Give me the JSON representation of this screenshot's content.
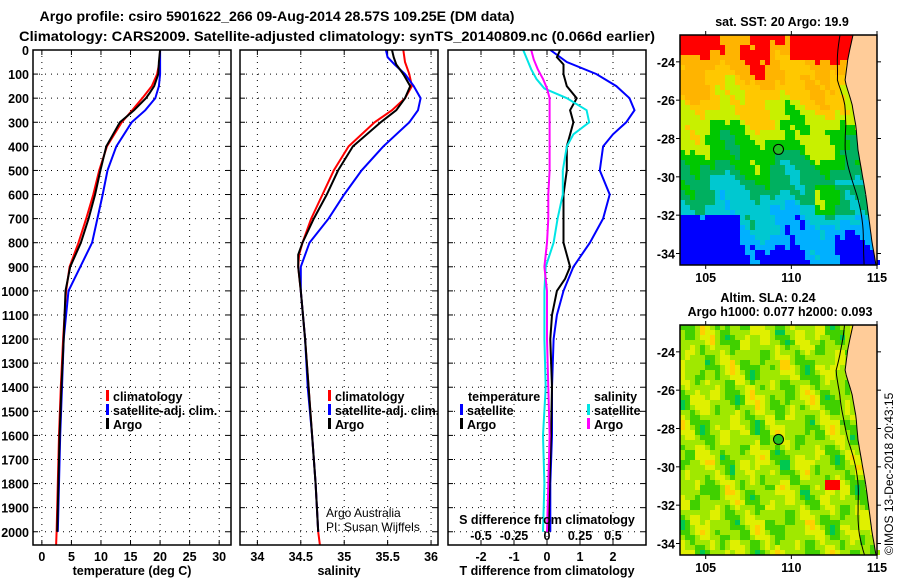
{
  "title": {
    "line1": "Argo profile: csiro 5901622_266 09-Aug-2014 28.57S 109.25E (DM data)",
    "line2": "Climatology: CARS2009. Satellite-adjusted climatology: synTS_20140809.nc (0.066d earlier)"
  },
  "credit": {
    "line1": "Argo Australia",
    "line2": "PI: Susan Wijffels"
  },
  "watermark": "©IMOS 13-Dec-2018 20:43:15",
  "colors": {
    "climatology": "#ff0000",
    "satellite": "#0000ff",
    "argo": "#000000",
    "sal_satellite": "#00e5e5",
    "sal_argo": "#ff00ff",
    "land": "#ffcc99"
  },
  "chart_data": [
    {
      "type": "line",
      "id": "temperature",
      "xlabel": "temperature (deg C)",
      "ylabel": "depth",
      "xlim": [
        -1.5,
        32
      ],
      "ylim": [
        2055,
        0
      ],
      "xticks": [
        "0",
        "5",
        "10",
        "15",
        "20",
        "25",
        "30"
      ],
      "xtick_values": [
        0,
        5,
        10,
        15,
        20,
        25,
        30
      ],
      "yticks": [
        "0",
        "100",
        "200",
        "300",
        "400",
        "500",
        "600",
        "700",
        "800",
        "900",
        "1000",
        "1100",
        "1200",
        "1300",
        "1400",
        "1500",
        "1600",
        "1700",
        "1800",
        "1900",
        "2000"
      ],
      "ytick_values": [
        0,
        100,
        200,
        300,
        400,
        500,
        600,
        700,
        800,
        900,
        1000,
        1100,
        1200,
        1300,
        1400,
        1500,
        1600,
        1700,
        1800,
        1900,
        2000
      ],
      "grid": true,
      "legend": [
        "climatology",
        "satellite-adj. clim.",
        "Argo"
      ],
      "legend_placement": "lower-right",
      "series": [
        {
          "name": "climatology",
          "color": "#ff0000",
          "depth": [
            0,
            50,
            100,
            150,
            200,
            250,
            300,
            400,
            500,
            600,
            700,
            800,
            900,
            1000,
            1200,
            1400,
            1600,
            1800,
            2000,
            2055
          ],
          "values": [
            20,
            19.9,
            19.5,
            18.6,
            17,
            15.3,
            13.5,
            11,
            9.7,
            8.7,
            7.5,
            6.2,
            4.7,
            4.1,
            3.6,
            3.2,
            2.9,
            2.7,
            2.5,
            2.4
          ]
        },
        {
          "name": "satellite-adj. clim.",
          "color": "#0000ff",
          "depth": [
            0,
            50,
            100,
            150,
            200,
            250,
            300,
            400,
            500,
            600,
            700,
            800,
            900,
            1000,
            1200,
            1400,
            1600,
            1800,
            2000
          ],
          "values": [
            20,
            20,
            20,
            19.8,
            19.2,
            17.5,
            15.2,
            12.6,
            11.1,
            10.3,
            9.4,
            8.5,
            6.5,
            4.5,
            3.7,
            3.4,
            3.1,
            2.9,
            2.7
          ]
        },
        {
          "name": "Argo",
          "color": "#000000",
          "depth": [
            0,
            50,
            100,
            150,
            180,
            200,
            250,
            300,
            400,
            500,
            600,
            700,
            800,
            900,
            1000,
            1200,
            1400,
            1600,
            1800,
            2000
          ],
          "values": [
            20,
            19.8,
            19.7,
            19,
            18.2,
            17.6,
            15.6,
            13.2,
            10.9,
            9.9,
            9,
            7.9,
            6.6,
            4.8,
            4,
            3.7,
            3.3,
            3,
            2.8,
            2.6
          ]
        }
      ]
    },
    {
      "type": "line",
      "id": "salinity",
      "xlabel": "salinity",
      "xlim": [
        33.8,
        36.08
      ],
      "ylim": [
        2055,
        0
      ],
      "xticks": [
        "34",
        "34.5",
        "35",
        "35.5",
        "36"
      ],
      "xtick_values": [
        34,
        34.5,
        35,
        35.5,
        36
      ],
      "grid": true,
      "legend": [
        "climatology",
        "satellite-adj. clim.",
        "Argo"
      ],
      "legend_placement": "lower-right",
      "series": [
        {
          "name": "climatology",
          "color": "#ff0000",
          "depth": [
            0,
            50,
            100,
            150,
            200,
            250,
            300,
            400,
            500,
            600,
            700,
            800,
            850,
            900,
            1000,
            1200,
            1400,
            1600,
            1800,
            2000,
            2055
          ],
          "values": [
            35.68,
            35.7,
            35.75,
            35.78,
            35.7,
            35.55,
            35.35,
            35.05,
            34.88,
            34.75,
            34.62,
            34.52,
            34.48,
            34.47,
            34.5,
            34.55,
            34.59,
            34.63,
            34.67,
            34.7,
            34.72
          ]
        },
        {
          "name": "satellite-adj. clim.",
          "color": "#0000ff",
          "depth": [
            0,
            30,
            60,
            100,
            150,
            200,
            250,
            300,
            400,
            500,
            600,
            700,
            800,
            900,
            1000,
            1200,
            1400,
            1600,
            1800,
            2000
          ],
          "values": [
            35.48,
            35.5,
            35.58,
            35.7,
            35.8,
            35.88,
            35.85,
            35.75,
            35.45,
            35.2,
            35.0,
            34.82,
            34.6,
            34.5,
            34.5,
            34.55,
            34.58,
            34.63,
            34.67,
            34.7
          ]
        },
        {
          "name": "Argo",
          "color": "#000000",
          "depth": [
            0,
            30,
            60,
            100,
            150,
            200,
            250,
            300,
            400,
            500,
            600,
            700,
            800,
            850,
            900,
            1000,
            1200,
            1400,
            1600,
            1800,
            2000
          ],
          "values": [
            35.55,
            35.57,
            35.6,
            35.68,
            35.76,
            35.7,
            35.6,
            35.42,
            35.1,
            34.93,
            34.8,
            34.65,
            34.52,
            34.47,
            34.47,
            34.5,
            34.55,
            34.59,
            34.63,
            34.67,
            34.7
          ]
        }
      ]
    },
    {
      "type": "line",
      "id": "difference",
      "xlabel": "T difference from climatology",
      "x2label": "S difference from climatology",
      "xlim": [
        -3,
        3
      ],
      "x2lim": [
        -0.75,
        0.75
      ],
      "ylim": [
        2055,
        0
      ],
      "xticks": [
        "-2",
        "-1",
        "0",
        "1",
        "2"
      ],
      "xtick_values": [
        -2,
        -1,
        0,
        1,
        2
      ],
      "x2ticks": [
        "-0.5",
        "-0.25",
        "0",
        "0.25",
        "0.5"
      ],
      "x2tick_values": [
        -0.5,
        -0.25,
        0,
        0.25,
        0.5
      ],
      "grid": true,
      "legend_temperature": {
        "title": "temperature",
        "items": [
          "satellite",
          "Argo"
        ]
      },
      "legend_salinity": {
        "title": "salinity",
        "items": [
          "satellite",
          "Argo"
        ]
      },
      "series": [
        {
          "name": "temperature satellite",
          "axis": "T",
          "color": "#0000ff",
          "depth": [
            0,
            50,
            100,
            150,
            200,
            250,
            300,
            350,
            400,
            500,
            600,
            700,
            800,
            900,
            1000,
            1100,
            1200,
            1400,
            1600,
            1800,
            2000
          ],
          "values": [
            0.1,
            0.6,
            1.5,
            2.1,
            2.5,
            2.65,
            2.4,
            2.0,
            1.7,
            1.6,
            1.9,
            1.7,
            1.3,
            0.8,
            0.5,
            0.3,
            0.2,
            0.15,
            0.15,
            0.1,
            0.1
          ]
        },
        {
          "name": "temperature Argo",
          "axis": "T",
          "color": "#000000",
          "depth": [
            0,
            30,
            60,
            100,
            150,
            200,
            250,
            300,
            400,
            500,
            600,
            700,
            800,
            900,
            950,
            1000,
            1100,
            1200,
            1400,
            1600,
            1800,
            2000
          ],
          "values": [
            0.4,
            0.3,
            0.5,
            0.5,
            0.6,
            0.9,
            0.7,
            0.8,
            0.6,
            0.6,
            0.5,
            0.5,
            0.5,
            0.7,
            0.55,
            0.3,
            0.15,
            0.1,
            0.15,
            0.12,
            0.08,
            0.05
          ]
        },
        {
          "name": "salinity satellite",
          "axis": "S",
          "color": "#00e5e5",
          "depth": [
            0,
            40,
            80,
            120,
            160,
            200,
            250,
            300,
            350,
            400,
            500,
            600,
            700,
            800,
            900,
            1000,
            1200,
            1400,
            1600,
            1800,
            2000
          ],
          "values": [
            -0.18,
            -0.15,
            -0.12,
            -0.08,
            -0.02,
            0.15,
            0.3,
            0.32,
            0.2,
            0.15,
            0.12,
            0.12,
            0.08,
            0.05,
            -0.01,
            -0.02,
            -0.02,
            -0.01,
            -0.03,
            -0.02,
            -0.03
          ]
        },
        {
          "name": "salinity Argo",
          "axis": "S",
          "color": "#ff00ff",
          "depth": [
            0,
            40,
            80,
            120,
            160,
            200,
            300,
            400,
            500,
            600,
            700,
            800,
            900,
            1000,
            1200,
            1400,
            1600,
            1800,
            2000
          ],
          "values": [
            -0.12,
            -0.1,
            -0.07,
            -0.03,
            0.0,
            0.02,
            0.02,
            0.02,
            0.02,
            0.01,
            0.01,
            0.0,
            -0.02,
            0.0,
            0.0,
            0.01,
            0.02,
            0.01,
            0.0
          ]
        }
      ]
    },
    {
      "type": "heatmap",
      "id": "sst-map",
      "title": "sat. SST: 20 Argo: 19.9",
      "xlim": [
        103.5,
        115
      ],
      "ylim": [
        -34.6,
        -22.6
      ],
      "xticks": [
        "105",
        "110",
        "115"
      ],
      "xtick_values": [
        105,
        110,
        115
      ],
      "yticks": [
        "-24",
        "-26",
        "-28",
        "-30",
        "-32",
        "-34"
      ],
      "ytick_values": [
        -24,
        -26,
        -28,
        -30,
        -32,
        -34
      ],
      "marker": {
        "lon": 109.25,
        "lat": -28.57
      },
      "colormap": [
        "#0000ff",
        "#00b0ff",
        "#00c8d0",
        "#00b060",
        "#00c800",
        "#c8f000",
        "#ffc800",
        "#ffb400",
        "#ff0000"
      ]
    },
    {
      "type": "heatmap",
      "id": "sla-map",
      "title": "Altim. SLA: 0.24",
      "subtitle": "Argo h1000: 0.077 h2000: 0.093",
      "xlim": [
        103.5,
        115
      ],
      "ylim": [
        -34.6,
        -22.6
      ],
      "xticks": [
        "105",
        "110",
        "115"
      ],
      "xtick_values": [
        105,
        110,
        115
      ],
      "yticks": [
        "-24",
        "-26",
        "-28",
        "-30",
        "-32",
        "-34"
      ],
      "ytick_values": [
        -24,
        -26,
        -28,
        -30,
        -32,
        -34
      ],
      "marker": {
        "lon": 109.25,
        "lat": -28.57
      },
      "colormap": [
        "#00b080",
        "#00c850",
        "#40d000",
        "#a0e800",
        "#e0f000",
        "#ffd000",
        "#ff0000"
      ]
    }
  ]
}
